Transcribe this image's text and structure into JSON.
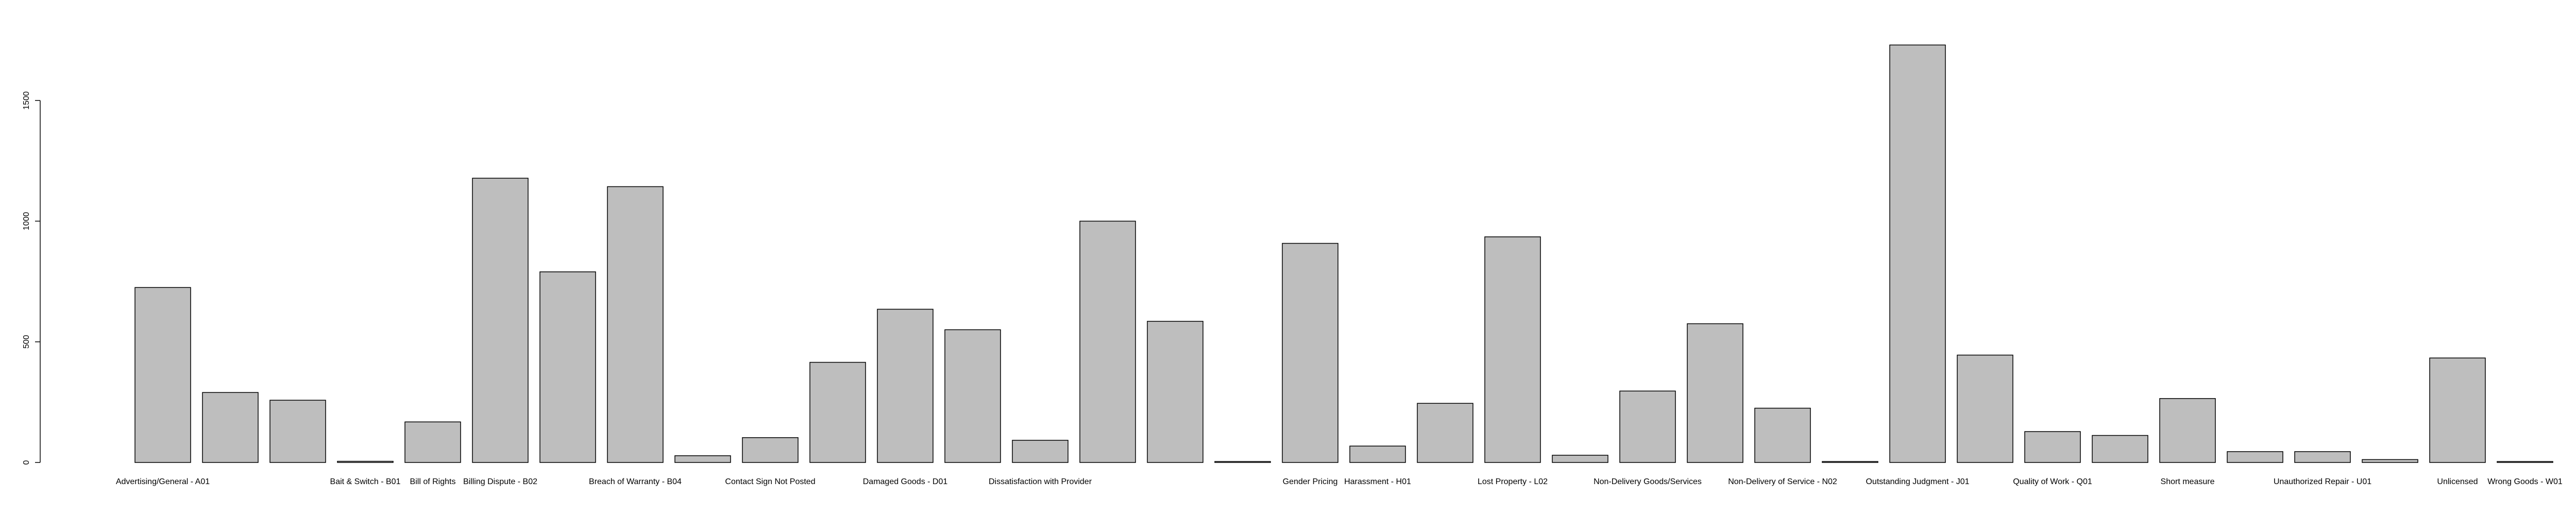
{
  "chart_data": {
    "type": "bar",
    "title": "",
    "xlabel": "",
    "ylabel": "",
    "ylim": [
      0,
      1750
    ],
    "yticks": [
      0,
      500,
      1000,
      1500
    ],
    "bar_color": "#bebebe",
    "border_color": "#000000",
    "categories": [
      "Advertising/General - A01",
      "",
      "",
      "Bait & Switch - B01",
      "Bill of Rights",
      "Billing Dispute - B02",
      "",
      "Breach of Warranty - B04",
      "",
      "Contact Sign Not Posted",
      "",
      "Damaged Goods - D01",
      "",
      "Dissatisfaction with Provider",
      "",
      "",
      "",
      "Gender Pricing",
      "Harassment - H01",
      "",
      "Lost Property - L02",
      "",
      "Non-Delivery Goods/Services",
      "",
      "Non-Delivery of Service - N02",
      "",
      "Outstanding Judgment - J01",
      "",
      "Quality of Work - Q01",
      "",
      "Short measure",
      "",
      "Unauthorized Repair - U01",
      "",
      "Unlicensed",
      "Wrong Goods - W01"
    ],
    "values": [
      725,
      290,
      258,
      5,
      168,
      1178,
      790,
      1143,
      28,
      103,
      415,
      635,
      550,
      92,
      1000,
      585,
      4,
      908,
      68,
      245,
      935,
      30,
      296,
      575,
      225,
      4,
      1730,
      445,
      128,
      112,
      265,
      45,
      45,
      12,
      433,
      4
    ]
  }
}
